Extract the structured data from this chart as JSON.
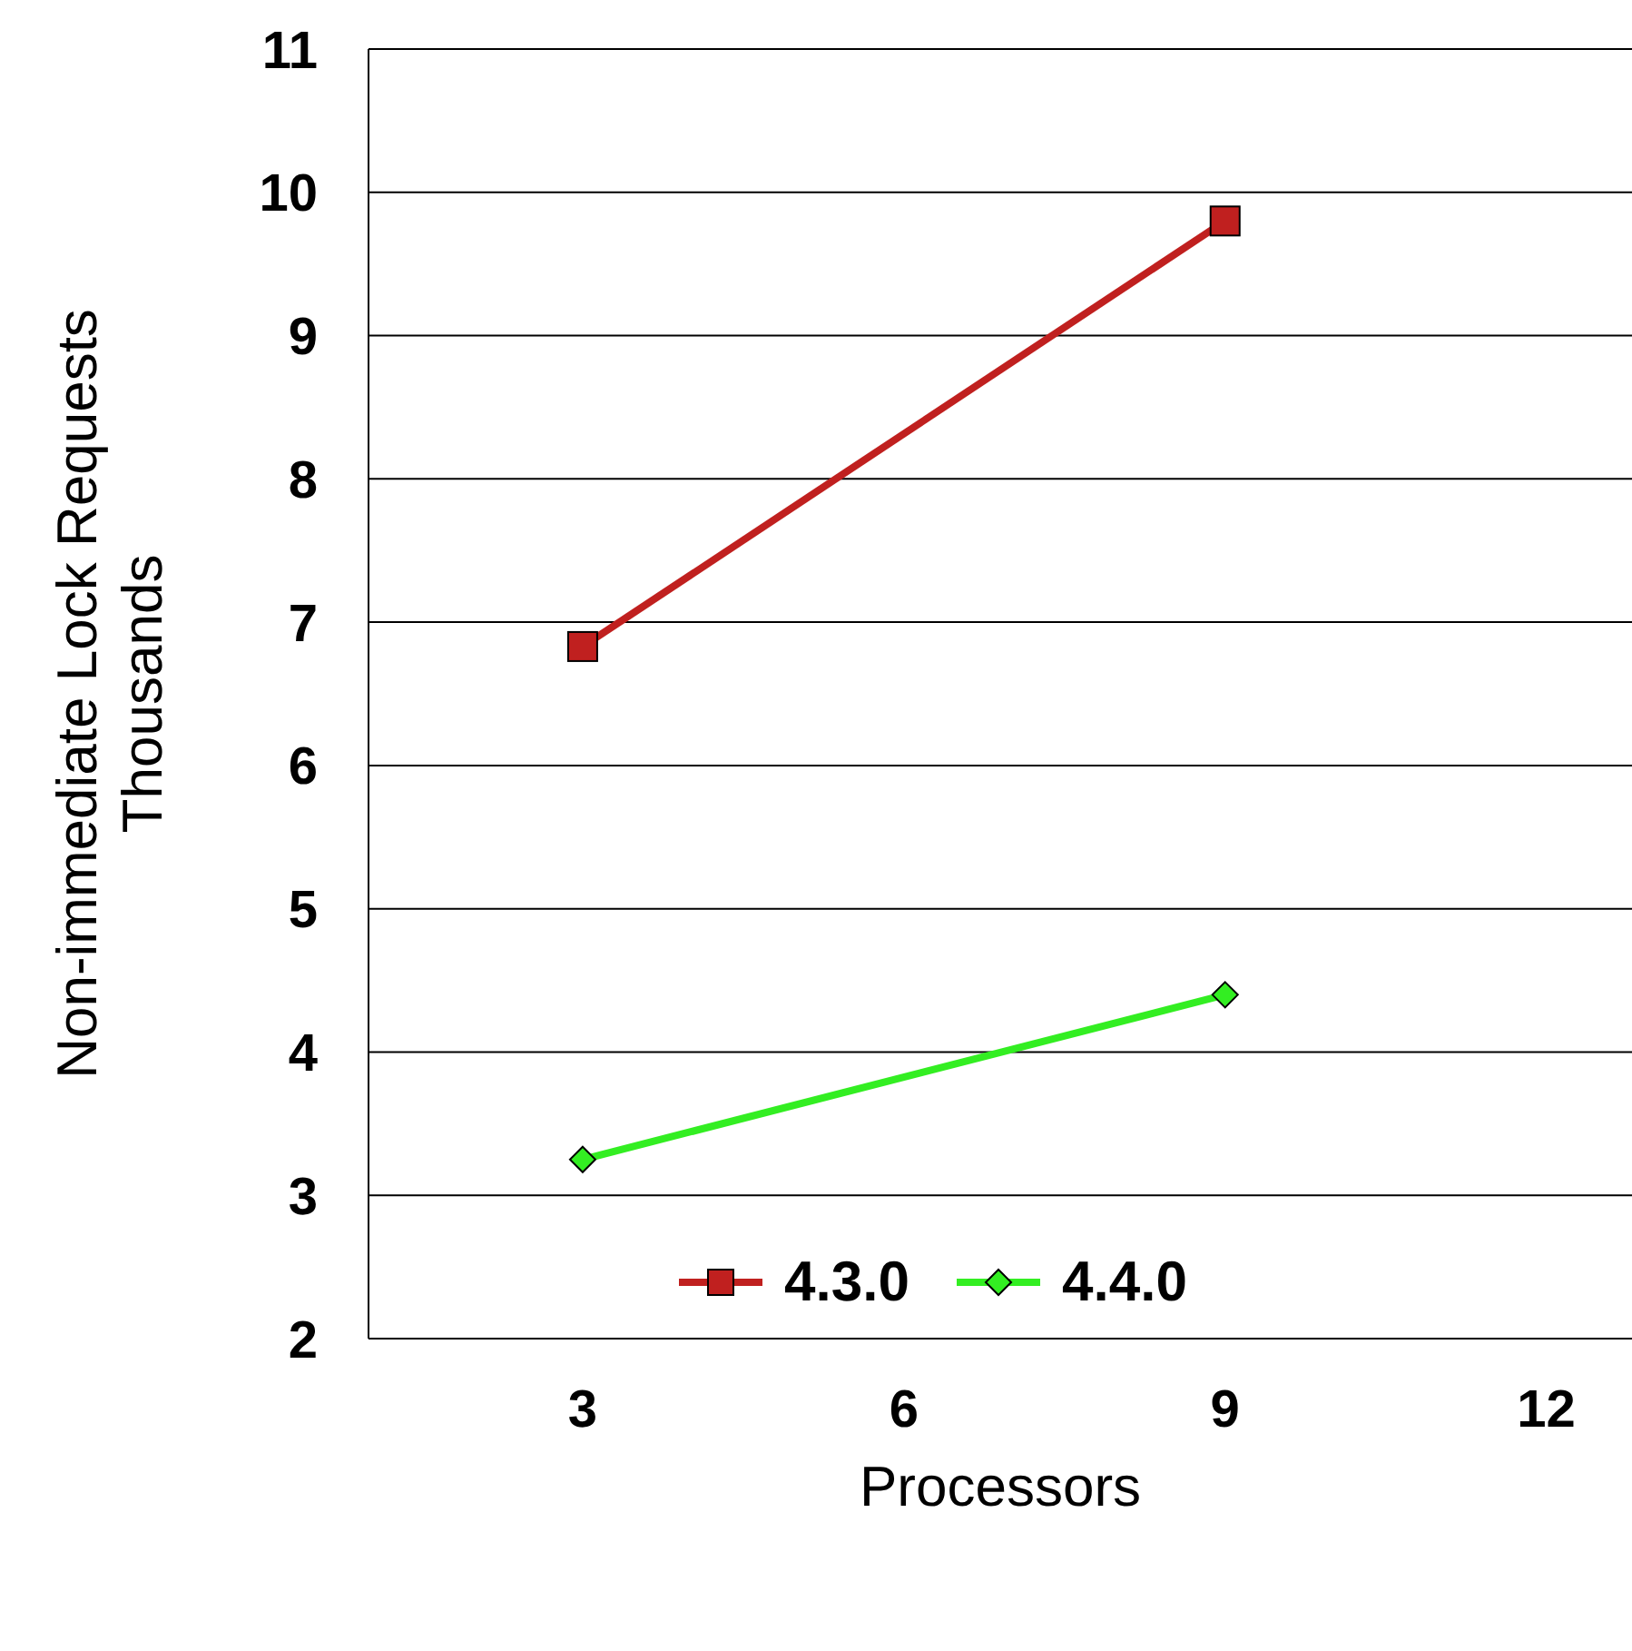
{
  "chart_data": {
    "type": "line",
    "xlabel": "Processors",
    "ylabel": "Non-immediate Lock Requests\nThousands",
    "series": [
      {
        "name": "4.3.0",
        "color": "#c0201f",
        "marker": "square",
        "values": [
          6.83,
          9.8
        ]
      },
      {
        "name": "4.4.0",
        "color": "#33ee22",
        "marker": "diamond",
        "values": [
          3.25,
          4.4
        ]
      }
    ],
    "x": [
      3,
      9
    ],
    "xlim": [
      1,
      12.8
    ],
    "xticks": [
      3,
      6,
      9,
      12
    ],
    "ylim": [
      2,
      11
    ],
    "yticks": [
      2,
      3,
      4,
      5,
      6,
      7,
      8,
      9,
      10,
      11
    ],
    "grid": "y",
    "legend": "bottom"
  }
}
